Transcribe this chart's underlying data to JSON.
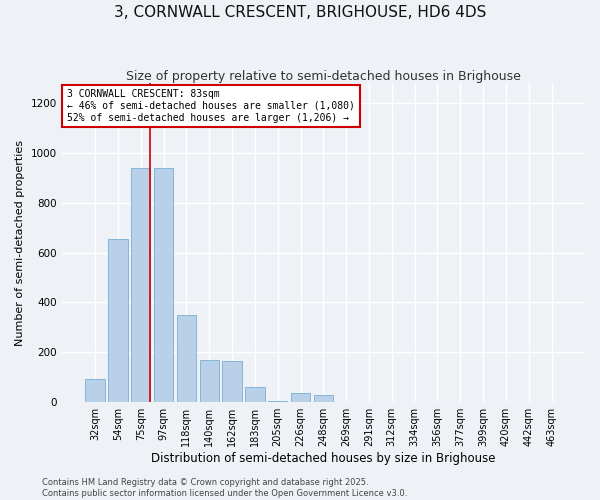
{
  "title": "3, CORNWALL CRESCENT, BRIGHOUSE, HD6 4DS",
  "subtitle": "Size of property relative to semi-detached houses in Brighouse",
  "xlabel": "Distribution of semi-detached houses by size in Brighouse",
  "ylabel": "Number of semi-detached properties",
  "categories": [
    "32sqm",
    "54sqm",
    "75sqm",
    "97sqm",
    "118sqm",
    "140sqm",
    "162sqm",
    "183sqm",
    "205sqm",
    "226sqm",
    "248sqm",
    "269sqm",
    "291sqm",
    "312sqm",
    "334sqm",
    "356sqm",
    "377sqm",
    "399sqm",
    "420sqm",
    "442sqm",
    "463sqm"
  ],
  "values": [
    95,
    655,
    940,
    940,
    350,
    170,
    165,
    60,
    5,
    35,
    30,
    0,
    0,
    0,
    0,
    0,
    0,
    0,
    0,
    0,
    0
  ],
  "bar_color": "#b8d0e8",
  "bar_edge_color": "#7aaed6",
  "vline_index": 2,
  "annotation_text": "3 CORNWALL CRESCENT: 83sqm\n← 46% of semi-detached houses are smaller (1,080)\n52% of semi-detached houses are larger (1,206) →",
  "annotation_box_facecolor": "#ffffff",
  "annotation_box_edgecolor": "#cc0000",
  "vline_color": "#cc0000",
  "ylim": [
    0,
    1280
  ],
  "yticks": [
    0,
    200,
    400,
    600,
    800,
    1000,
    1200
  ],
  "footnote": "Contains HM Land Registry data © Crown copyright and database right 2025.\nContains public sector information licensed under the Open Government Licence v3.0.",
  "background_color": "#eef2f7",
  "grid_color": "#ffffff",
  "title_fontsize": 11,
  "subtitle_fontsize": 9,
  "xlabel_fontsize": 8.5,
  "ylabel_fontsize": 8,
  "tick_fontsize": 7,
  "annotation_fontsize": 7,
  "footnote_fontsize": 6
}
